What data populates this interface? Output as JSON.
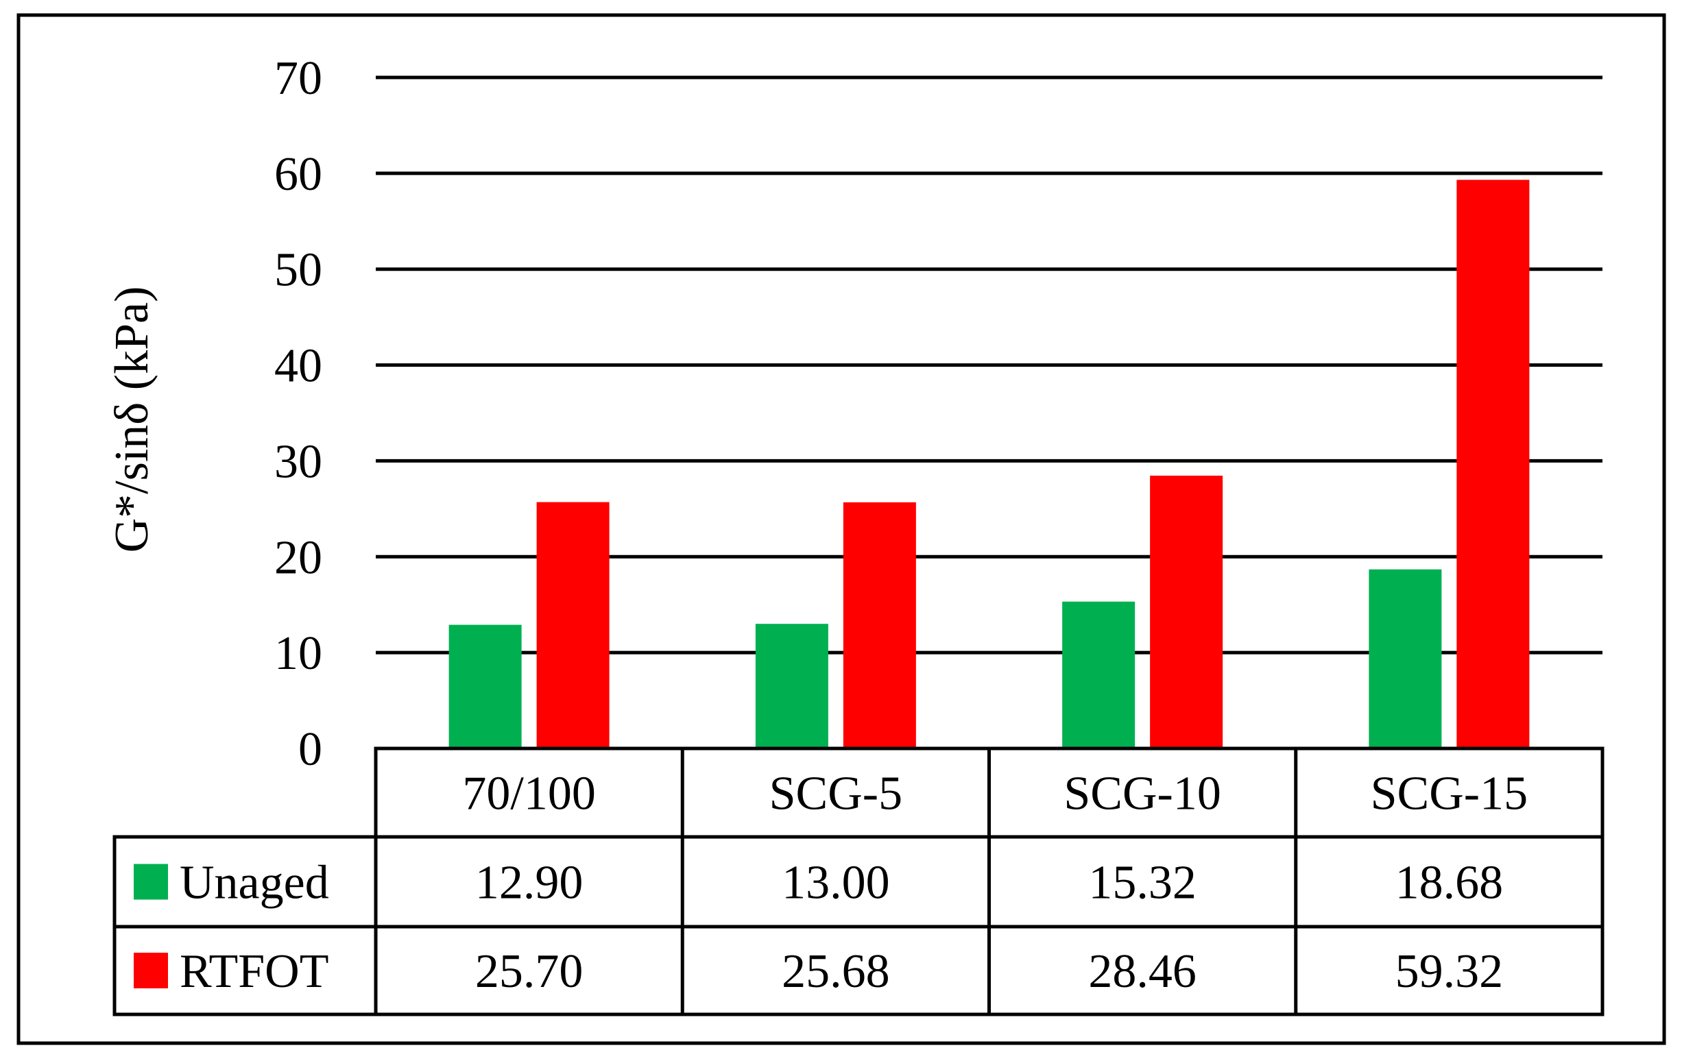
{
  "chart_data": {
    "type": "bar",
    "ylabel": "G*/sinδ (kPa)",
    "ylim": [
      0,
      70
    ],
    "yticks": [
      0,
      10,
      20,
      30,
      40,
      50,
      60,
      70
    ],
    "grid": true,
    "legend": "data-table",
    "categories": [
      "70/100",
      "SCG-5",
      "SCG-10",
      "SCG-15"
    ],
    "series": [
      {
        "name": "Unaged",
        "color": "#00b050",
        "values": [
          12.9,
          13.0,
          15.32,
          18.68
        ],
        "labels": [
          "12.90",
          "13.00",
          "15.32",
          "18.68"
        ]
      },
      {
        "name": "RTFOT",
        "color": "#ff0000",
        "values": [
          25.7,
          25.68,
          28.46,
          59.32
        ],
        "labels": [
          "25.70",
          "25.68",
          "28.46",
          "59.32"
        ]
      }
    ]
  }
}
